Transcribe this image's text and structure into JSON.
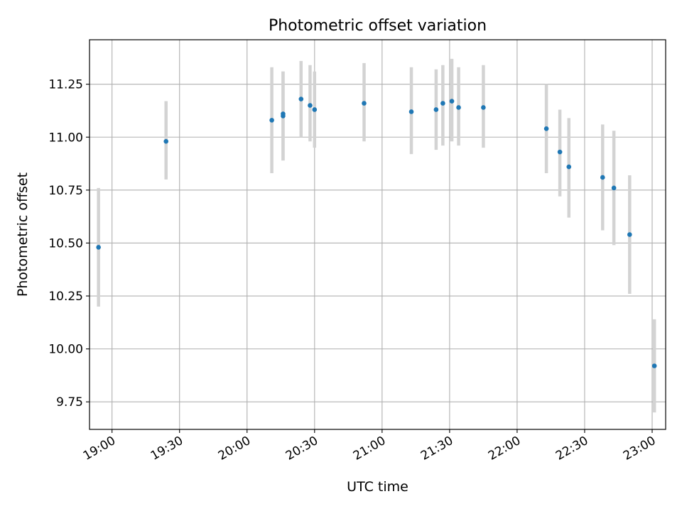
{
  "chart_data": {
    "type": "scatter",
    "title": "Photometric offset variation",
    "xlabel": "UTC time",
    "ylabel": "Photometric offset",
    "x_axis_kind": "time",
    "xlim": [
      "18:50",
      "23:06"
    ],
    "ylim": [
      9.62,
      11.46
    ],
    "xticks": [
      "19:00",
      "19:30",
      "20:00",
      "20:30",
      "21:00",
      "21:30",
      "22:00",
      "22:30",
      "23:00"
    ],
    "yticks": [
      9.75,
      10.0,
      10.25,
      10.5,
      10.75,
      11.0,
      11.25
    ],
    "ytick_labels": [
      "9.75",
      "10.00",
      "10.25",
      "10.50",
      "10.75",
      "11.00",
      "11.25"
    ],
    "grid": true,
    "colors": {
      "point": "#1f77b4",
      "errorbar": "#d3d3d3",
      "grid": "#b0b0b0"
    },
    "points": [
      {
        "time": "18:54",
        "y": 10.48,
        "err_low": 10.2,
        "err_high": 10.76
      },
      {
        "time": "19:24",
        "y": 10.98,
        "err_low": 10.8,
        "err_high": 11.17
      },
      {
        "time": "20:11",
        "y": 11.08,
        "err_low": 10.83,
        "err_high": 11.33
      },
      {
        "time": "20:16",
        "y": 11.1,
        "err_low": 10.89,
        "err_high": 11.31
      },
      {
        "time": "20:16",
        "y": 11.11,
        "err_low": 10.89,
        "err_high": 11.31
      },
      {
        "time": "20:24",
        "y": 11.18,
        "err_low": 11.0,
        "err_high": 11.36
      },
      {
        "time": "20:28",
        "y": 11.15,
        "err_low": 10.98,
        "err_high": 11.34
      },
      {
        "time": "20:30",
        "y": 11.13,
        "err_low": 10.95,
        "err_high": 11.31
      },
      {
        "time": "20:52",
        "y": 11.16,
        "err_low": 10.98,
        "err_high": 11.35
      },
      {
        "time": "21:13",
        "y": 11.12,
        "err_low": 10.92,
        "err_high": 11.33
      },
      {
        "time": "21:24",
        "y": 11.13,
        "err_low": 10.94,
        "err_high": 11.32
      },
      {
        "time": "21:27",
        "y": 11.16,
        "err_low": 10.96,
        "err_high": 11.34
      },
      {
        "time": "21:31",
        "y": 11.17,
        "err_low": 10.98,
        "err_high": 11.37
      },
      {
        "time": "21:34",
        "y": 11.14,
        "err_low": 10.96,
        "err_high": 11.33
      },
      {
        "time": "21:45",
        "y": 11.14,
        "err_low": 10.95,
        "err_high": 11.34
      },
      {
        "time": "22:13",
        "y": 11.04,
        "err_low": 10.83,
        "err_high": 11.25
      },
      {
        "time": "22:19",
        "y": 10.93,
        "err_low": 10.72,
        "err_high": 11.13
      },
      {
        "time": "22:23",
        "y": 10.86,
        "err_low": 10.62,
        "err_high": 11.09
      },
      {
        "time": "22:38",
        "y": 10.81,
        "err_low": 10.56,
        "err_high": 11.06
      },
      {
        "time": "22:43",
        "y": 10.76,
        "err_low": 10.49,
        "err_high": 11.03
      },
      {
        "time": "22:50",
        "y": 10.54,
        "err_low": 10.26,
        "err_high": 10.82
      },
      {
        "time": "23:01",
        "y": 9.92,
        "err_low": 9.7,
        "err_high": 10.14
      }
    ]
  }
}
